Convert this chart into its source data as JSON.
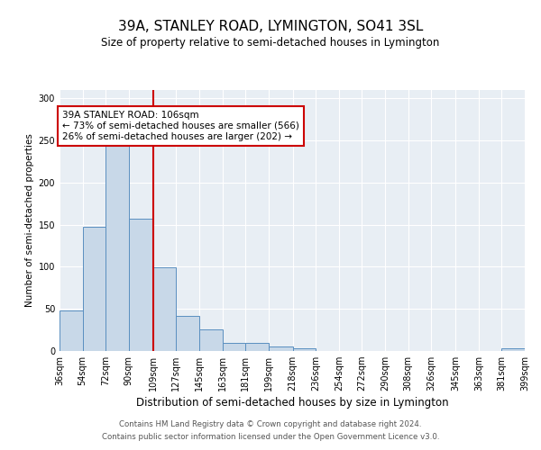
{
  "title1": "39A, STANLEY ROAD, LYMINGTON, SO41 3SL",
  "title2": "Size of property relative to semi-detached houses in Lymington",
  "xlabel": "Distribution of semi-detached houses by size in Lymington",
  "ylabel": "Number of semi-detached properties",
  "bins": [
    36,
    54,
    72,
    90,
    109,
    127,
    145,
    163,
    181,
    199,
    218,
    236,
    254,
    272,
    290,
    308,
    326,
    345,
    363,
    381,
    399
  ],
  "counts": [
    48,
    147,
    245,
    157,
    99,
    42,
    26,
    10,
    10,
    5,
    3,
    0,
    0,
    0,
    0,
    0,
    0,
    0,
    0,
    3
  ],
  "bar_color": "#c8d8e8",
  "bar_edge_color": "#5a8fc0",
  "vline_x": 109,
  "vline_color": "#cc0000",
  "annotation_text": "39A STANLEY ROAD: 106sqm\n← 73% of semi-detached houses are smaller (566)\n26% of semi-detached houses are larger (202) →",
  "annotation_box_color": "white",
  "annotation_box_edge": "#cc0000",
  "footer1": "Contains HM Land Registry data © Crown copyright and database right 2024.",
  "footer2": "Contains public sector information licensed under the Open Government Licence v3.0.",
  "ylim": [
    0,
    310
  ],
  "background_color": "#e8eef4",
  "tick_labels": [
    "36sqm",
    "54sqm",
    "72sqm",
    "90sqm",
    "109sqm",
    "127sqm",
    "145sqm",
    "163sqm",
    "181sqm",
    "199sqm",
    "218sqm",
    "236sqm",
    "254sqm",
    "272sqm",
    "290sqm",
    "308sqm",
    "326sqm",
    "345sqm",
    "363sqm",
    "381sqm",
    "399sqm"
  ]
}
